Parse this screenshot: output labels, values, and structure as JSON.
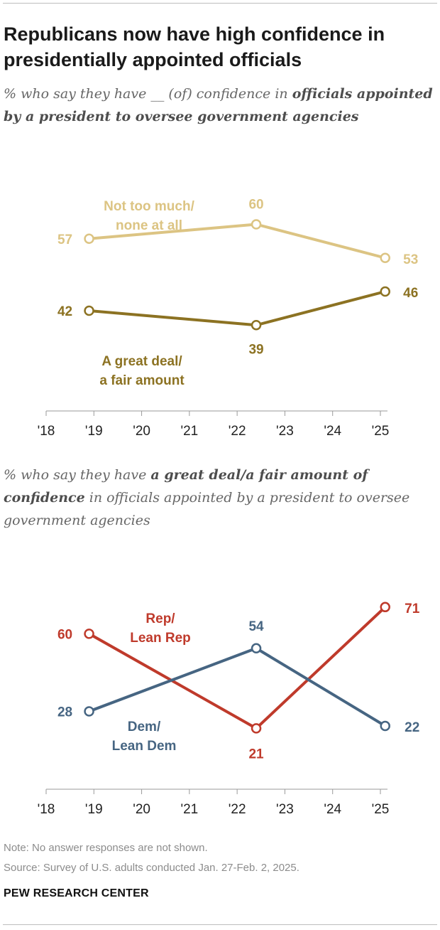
{
  "title": "Republicans now have high confidence in presidentially appointed officials",
  "subtitle1": {
    "prefix": "% who say they have __ (of) confidence in ",
    "bold": "officials appointed by a president to oversee government agencies"
  },
  "subtitle2": {
    "prefix": "% who say they have ",
    "bold": "a great deal/a fair amount of confidence",
    "suffix": " in officials appointed by a president to oversee government agencies"
  },
  "colors": {
    "not_too_much": "#dcc483",
    "great_deal": "#8c7222",
    "rep": "#bf3a2b",
    "dem": "#466582",
    "axis": "#9a9a9a"
  },
  "chart_data": [
    {
      "type": "line",
      "x_ticks": [
        "'18",
        "'19",
        "'20",
        "'21",
        "'22",
        "'23",
        "'24",
        "'25"
      ],
      "x_tick_years": [
        2018,
        2019,
        2020,
        2021,
        2022,
        2023,
        2024,
        2025
      ],
      "xlim": [
        2018,
        2025
      ],
      "ylim": [
        30,
        70
      ],
      "series": [
        {
          "name": "Not too much/ none at all",
          "label_lines": [
            "Not too much/",
            "none at all"
          ],
          "color_key": "not_too_much",
          "x": [
            2018.9,
            2022.4,
            2025.1
          ],
          "values": [
            57,
            60,
            53
          ],
          "labels": [
            "57",
            "60",
            "53"
          ]
        },
        {
          "name": "A great deal/ a fair amount",
          "label_lines": [
            "A great deal/",
            "a fair amount"
          ],
          "color_key": "great_deal",
          "x": [
            2018.9,
            2022.4,
            2025.1
          ],
          "values": [
            42,
            39,
            46
          ],
          "labels": [
            "42",
            "39",
            "46"
          ]
        }
      ]
    },
    {
      "type": "line",
      "x_ticks": [
        "'18",
        "'19",
        "'20",
        "'21",
        "'22",
        "'23",
        "'24",
        "'25"
      ],
      "x_tick_years": [
        2018,
        2019,
        2020,
        2021,
        2022,
        2023,
        2024,
        2025
      ],
      "xlim": [
        2018,
        2025
      ],
      "ylim": [
        0,
        90
      ],
      "series": [
        {
          "name": "Rep/ Lean Rep",
          "label_lines": [
            "Rep/",
            "Lean Rep"
          ],
          "color_key": "rep",
          "x": [
            2018.9,
            2022.4,
            2025.1
          ],
          "values": [
            60,
            21,
            71
          ],
          "labels": [
            "60",
            "21",
            "71"
          ]
        },
        {
          "name": "Dem/ Lean Dem",
          "label_lines": [
            "Dem/",
            "Lean Dem"
          ],
          "color_key": "dem",
          "x": [
            2018.9,
            2022.4,
            2025.1
          ],
          "values": [
            28,
            54,
            22
          ],
          "labels": [
            "28",
            "54",
            "22"
          ]
        }
      ]
    }
  ],
  "note": "Note: No answer responses are not shown.",
  "source": "Source: Survey of U.S. adults conducted Jan. 27-Feb. 2, 2025.",
  "brand": "PEW RESEARCH CENTER"
}
